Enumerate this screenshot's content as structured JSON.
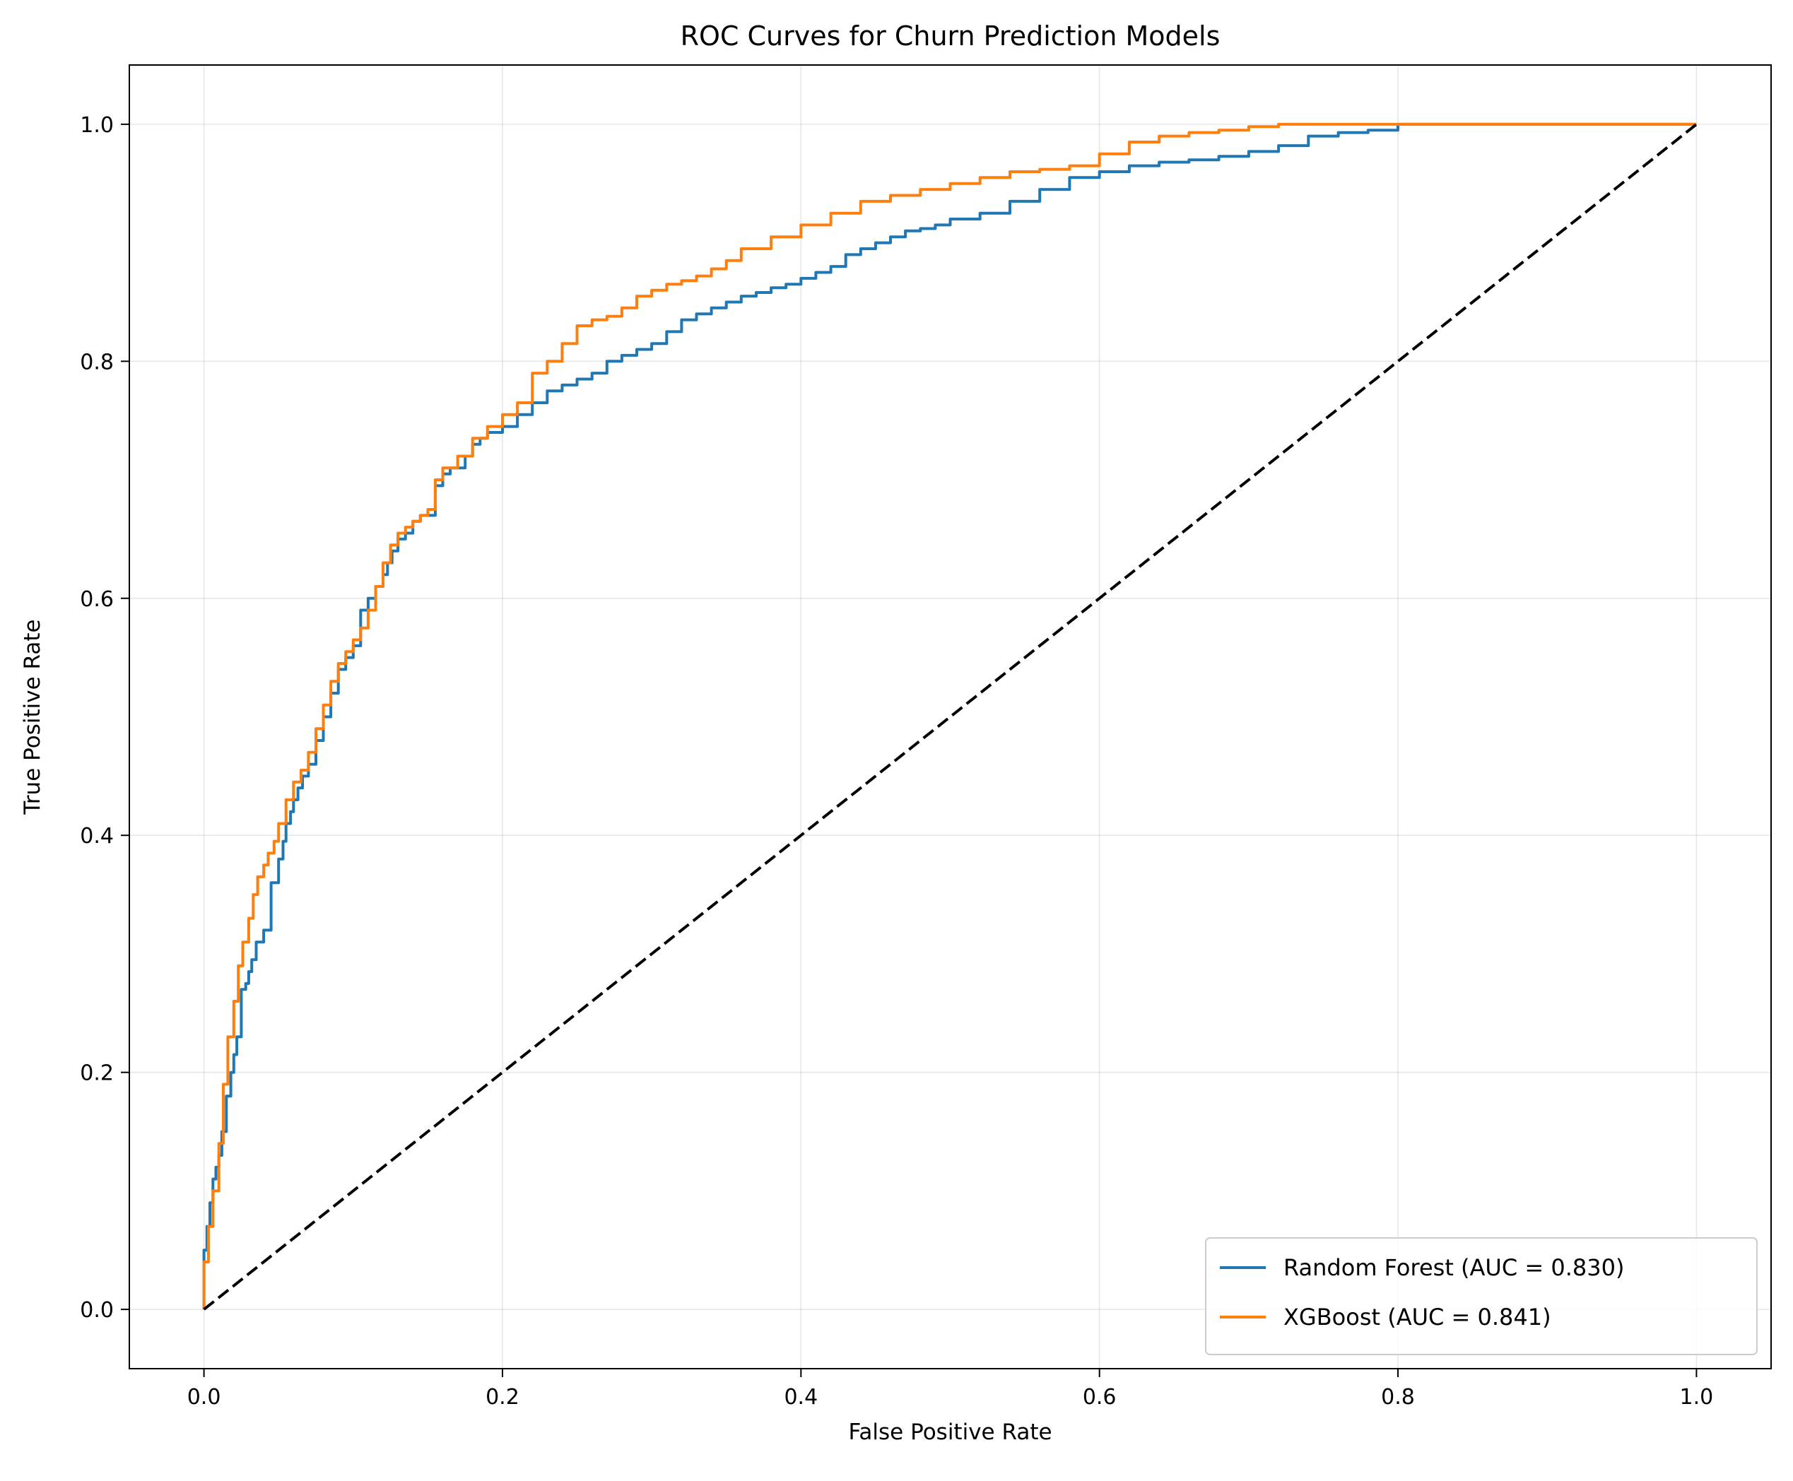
{
  "chart_data": {
    "type": "line",
    "title": "ROC Curves for Churn Prediction Models",
    "xlabel": "False Positive Rate",
    "ylabel": "True Positive Rate",
    "xlim": [
      -0.05,
      1.05
    ],
    "ylim": [
      -0.05,
      1.05
    ],
    "xticks": [
      0.0,
      0.2,
      0.4,
      0.6,
      0.8,
      1.0
    ],
    "yticks": [
      0.0,
      0.2,
      0.4,
      0.6,
      0.8,
      1.0
    ],
    "xtick_labels": [
      "0.0",
      "0.2",
      "0.4",
      "0.6",
      "0.8",
      "1.0"
    ],
    "ytick_labels": [
      "0.0",
      "0.2",
      "0.4",
      "0.6",
      "0.8",
      "1.0"
    ],
    "grid": true,
    "legend": {
      "position": "lower-right"
    },
    "series": [
      {
        "name": "Random Forest (AUC = 0.830)",
        "color": "#1f77b4",
        "x": [
          0.0,
          0.0,
          0.002,
          0.004,
          0.006,
          0.008,
          0.01,
          0.012,
          0.015,
          0.018,
          0.02,
          0.022,
          0.025,
          0.028,
          0.03,
          0.032,
          0.035,
          0.04,
          0.045,
          0.05,
          0.053,
          0.055,
          0.058,
          0.06,
          0.063,
          0.066,
          0.07,
          0.075,
          0.08,
          0.085,
          0.09,
          0.095,
          0.1,
          0.105,
          0.11,
          0.115,
          0.12,
          0.123,
          0.126,
          0.13,
          0.135,
          0.14,
          0.145,
          0.15,
          0.155,
          0.16,
          0.165,
          0.17,
          0.175,
          0.18,
          0.185,
          0.19,
          0.2,
          0.21,
          0.22,
          0.23,
          0.24,
          0.25,
          0.26,
          0.27,
          0.28,
          0.29,
          0.3,
          0.31,
          0.32,
          0.33,
          0.34,
          0.35,
          0.36,
          0.37,
          0.38,
          0.39,
          0.4,
          0.41,
          0.42,
          0.43,
          0.44,
          0.45,
          0.46,
          0.47,
          0.48,
          0.49,
          0.5,
          0.52,
          0.54,
          0.56,
          0.58,
          0.6,
          0.62,
          0.64,
          0.66,
          0.68,
          0.7,
          0.72,
          0.74,
          0.76,
          0.78,
          0.8,
          0.82,
          0.84,
          0.86,
          0.88,
          0.9,
          0.93,
          0.96,
          1.0
        ],
        "y": [
          0.0,
          0.05,
          0.07,
          0.09,
          0.11,
          0.12,
          0.13,
          0.15,
          0.18,
          0.2,
          0.215,
          0.23,
          0.27,
          0.275,
          0.285,
          0.295,
          0.31,
          0.32,
          0.36,
          0.38,
          0.395,
          0.41,
          0.42,
          0.43,
          0.44,
          0.45,
          0.46,
          0.48,
          0.5,
          0.52,
          0.54,
          0.55,
          0.56,
          0.59,
          0.6,
          0.61,
          0.62,
          0.63,
          0.64,
          0.65,
          0.655,
          0.665,
          0.67,
          0.67,
          0.695,
          0.705,
          0.71,
          0.71,
          0.72,
          0.73,
          0.735,
          0.74,
          0.745,
          0.755,
          0.765,
          0.775,
          0.78,
          0.785,
          0.79,
          0.8,
          0.805,
          0.81,
          0.815,
          0.825,
          0.835,
          0.84,
          0.845,
          0.85,
          0.855,
          0.858,
          0.862,
          0.865,
          0.87,
          0.875,
          0.88,
          0.89,
          0.895,
          0.9,
          0.905,
          0.91,
          0.912,
          0.915,
          0.92,
          0.925,
          0.935,
          0.945,
          0.955,
          0.96,
          0.965,
          0.968,
          0.97,
          0.973,
          0.977,
          0.982,
          0.99,
          0.993,
          0.995,
          1.0,
          1.0,
          1.0,
          1.0,
          1.0,
          1.0,
          1.0,
          1.0,
          1.0
        ]
      },
      {
        "name": "XGBoost (AUC = 0.841)",
        "color": "#ff7f0e",
        "x": [
          0.0,
          0.0,
          0.003,
          0.006,
          0.01,
          0.013,
          0.016,
          0.02,
          0.023,
          0.026,
          0.03,
          0.033,
          0.036,
          0.04,
          0.043,
          0.047,
          0.05,
          0.055,
          0.06,
          0.065,
          0.07,
          0.075,
          0.08,
          0.085,
          0.09,
          0.095,
          0.1,
          0.105,
          0.11,
          0.115,
          0.12,
          0.125,
          0.13,
          0.135,
          0.14,
          0.145,
          0.15,
          0.155,
          0.16,
          0.17,
          0.18,
          0.19,
          0.2,
          0.21,
          0.22,
          0.23,
          0.24,
          0.25,
          0.26,
          0.27,
          0.28,
          0.29,
          0.3,
          0.31,
          0.32,
          0.33,
          0.34,
          0.35,
          0.36,
          0.38,
          0.4,
          0.42,
          0.44,
          0.46,
          0.48,
          0.5,
          0.52,
          0.54,
          0.56,
          0.58,
          0.6,
          0.62,
          0.64,
          0.66,
          0.68,
          0.7,
          0.72,
          0.74,
          0.76,
          0.78,
          0.8,
          0.84,
          0.88,
          0.93,
          1.0
        ],
        "y": [
          0.0,
          0.04,
          0.07,
          0.1,
          0.14,
          0.19,
          0.23,
          0.26,
          0.29,
          0.31,
          0.33,
          0.35,
          0.365,
          0.375,
          0.385,
          0.395,
          0.41,
          0.43,
          0.445,
          0.455,
          0.47,
          0.49,
          0.51,
          0.53,
          0.545,
          0.555,
          0.565,
          0.575,
          0.59,
          0.61,
          0.63,
          0.645,
          0.655,
          0.66,
          0.665,
          0.67,
          0.675,
          0.7,
          0.71,
          0.72,
          0.735,
          0.745,
          0.755,
          0.765,
          0.79,
          0.8,
          0.815,
          0.83,
          0.835,
          0.838,
          0.845,
          0.855,
          0.86,
          0.865,
          0.868,
          0.872,
          0.878,
          0.885,
          0.895,
          0.905,
          0.915,
          0.925,
          0.935,
          0.94,
          0.945,
          0.95,
          0.955,
          0.96,
          0.962,
          0.965,
          0.975,
          0.985,
          0.99,
          0.993,
          0.995,
          0.998,
          1.0,
          1.0,
          1.0,
          1.0,
          1.0,
          1.0,
          1.0,
          1.0,
          1.0
        ]
      },
      {
        "name": "",
        "color": "#000000",
        "dashed": true,
        "x": [
          0.0,
          1.0
        ],
        "y": [
          0.0,
          1.0
        ]
      }
    ]
  }
}
